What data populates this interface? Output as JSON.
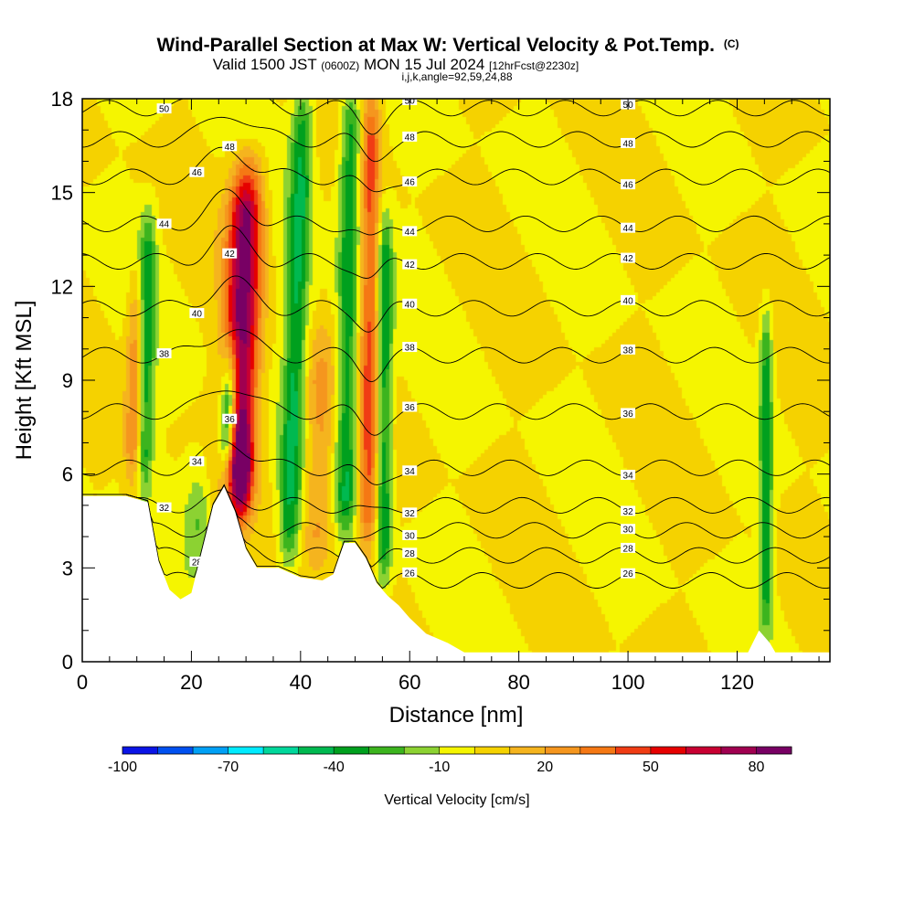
{
  "chart_data": {
    "type": "contour",
    "title": "Wind-Parallel Section at Max W: Vertical Velocity & Pot.Temp.",
    "title_mark": "(C)",
    "subtitle": {
      "valid": "Valid 1500 JST",
      "utc": "(0600Z)",
      "date": "MON 15 Jul 2024",
      "fcst": "[12hrFcst@2230z]"
    },
    "indices": "i,j,k,angle=92,59,24,88",
    "xlabel": "Distance [nm]",
    "ylabel": "Height [Kft MSL]",
    "xlim": [
      0,
      137
    ],
    "ylim": [
      0,
      18
    ],
    "xticks": [
      0,
      20,
      40,
      60,
      80,
      100,
      120
    ],
    "yticks": [
      0,
      3,
      6,
      9,
      12,
      15,
      18
    ],
    "colorbar": {
      "label": "Vertical Velocity [cm/s]",
      "ticks": [
        "-100",
        "-70",
        "-40",
        "-10",
        "20",
        "50",
        "80"
      ],
      "colors": [
        "#0a14e6",
        "#0050f0",
        "#00a0f5",
        "#00ebff",
        "#00d79b",
        "#00b950",
        "#00a01e",
        "#3cb41e",
        "#8cd232",
        "#f5f500",
        "#f5d200",
        "#f5b41e",
        "#f5961e",
        "#f57814",
        "#f03c14",
        "#e60000",
        "#c80032",
        "#a00050",
        "#780064"
      ]
    },
    "theta_contours_C": [
      "26",
      "28",
      "30",
      "32",
      "34",
      "36",
      "38",
      "40",
      "42",
      "44",
      "46",
      "48",
      "50"
    ],
    "terrain_profile": [
      [
        0,
        5.3
      ],
      [
        3,
        5.3
      ],
      [
        8,
        5.3
      ],
      [
        12,
        5.1
      ],
      [
        14,
        3.2
      ],
      [
        16,
        2.3
      ],
      [
        18,
        2.0
      ],
      [
        20,
        2.2
      ],
      [
        22,
        3.6
      ],
      [
        24,
        5.0
      ],
      [
        26,
        5.6
      ],
      [
        28,
        4.8
      ],
      [
        30,
        3.6
      ],
      [
        32,
        3.0
      ],
      [
        36,
        3.0
      ],
      [
        40,
        2.7
      ],
      [
        44,
        2.6
      ],
      [
        46,
        2.8
      ],
      [
        48,
        3.8
      ],
      [
        50,
        3.8
      ],
      [
        52,
        3.3
      ],
      [
        54,
        2.5
      ],
      [
        56,
        2.1
      ],
      [
        58,
        1.8
      ],
      [
        60,
        1.4
      ],
      [
        63,
        0.9
      ],
      [
        67,
        0.6
      ],
      [
        70,
        0.3
      ],
      [
        122,
        0.3
      ],
      [
        124,
        1.0
      ],
      [
        126,
        0.6
      ],
      [
        127,
        0.3
      ],
      [
        137,
        0.3
      ]
    ],
    "series": [
      {
        "name": "up",
        "x": 28,
        "ytop": 15.5,
        "w": 3.0,
        "v": 85,
        "angle": 0.2
      },
      {
        "name": "down",
        "x": 26,
        "ytop": 9.5,
        "w": 1.6,
        "v": -75,
        "angle": 0.25
      },
      {
        "name": "up2",
        "x": 29,
        "ytop": 7.0,
        "w": 1.6,
        "v": 50,
        "angle": 0.15
      },
      {
        "name": "dn3",
        "x": 11,
        "ytop": 14.0,
        "w": 1.5,
        "v": -35,
        "angle": 0.1
      },
      {
        "name": "dn4",
        "x": 38,
        "ytop": 18.0,
        "w": 2.0,
        "v": -40,
        "angle": 0.18
      },
      {
        "name": "dn5",
        "x": 48,
        "ytop": 18.0,
        "w": 2.0,
        "v": -40,
        "angle": 0.08
      },
      {
        "name": "dn6",
        "x": 55,
        "ytop": 14.0,
        "w": 1.4,
        "v": -40,
        "angle": 0.02
      },
      {
        "name": "up7",
        "x": 52,
        "ytop": 18.0,
        "w": 1.8,
        "v": 40,
        "angle": 0.05
      },
      {
        "name": "up8",
        "x": 9,
        "ytop": 12.0,
        "w": 1.6,
        "v": 30,
        "angle": 0.1
      },
      {
        "name": "dn9",
        "x": 125,
        "ytop": 11.0,
        "w": 1.2,
        "v": -35,
        "angle": 0.0
      },
      {
        "name": "up10",
        "x": 43,
        "ytop": 10.0,
        "w": 3.0,
        "v": 25,
        "angle": 0.1
      },
      {
        "name": "dn11",
        "x": 21,
        "ytop": 6.0,
        "w": 2.5,
        "v": -20,
        "angle": 0.0
      }
    ]
  }
}
